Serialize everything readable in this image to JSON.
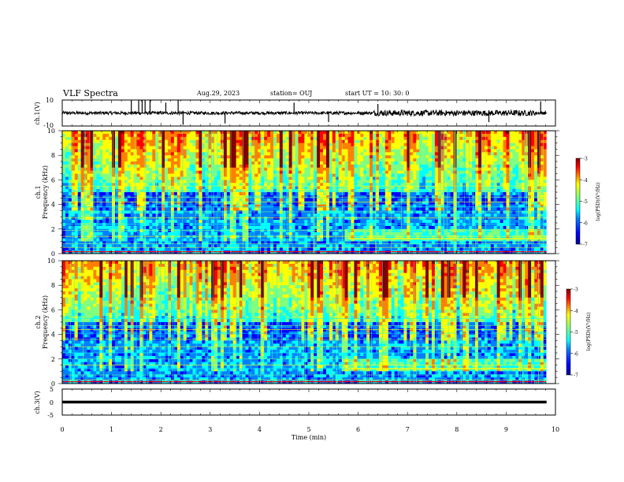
{
  "header": {
    "title": "VLF Spectra",
    "date": "Aug.29, 2023",
    "station": "station= OUJ",
    "start": "start UT =  10: 30: 0"
  },
  "colors": {
    "jet": [
      "#00008f",
      "#0000ff",
      "#0080ff",
      "#00ffff",
      "#80ff80",
      "#ffff00",
      "#ff8000",
      "#ff0000",
      "#800000"
    ]
  },
  "chart_data": [
    {
      "type": "line",
      "panel": "ch1-waveform",
      "ylabel": "ch.1(V)",
      "ylim": [
        -10,
        10
      ],
      "yticks": [
        "10",
        "-10"
      ],
      "xlim": [
        0,
        10
      ],
      "baseline": 0,
      "spikes": [
        {
          "x": 1.4,
          "y": 10
        },
        {
          "x": 1.55,
          "y": 10
        },
        {
          "x": 1.62,
          "y": 10
        },
        {
          "x": 1.68,
          "y": 10
        },
        {
          "x": 1.78,
          "y": 10
        },
        {
          "x": 2.1,
          "y": 8
        },
        {
          "x": 2.35,
          "y": 10
        },
        {
          "x": 2.45,
          "y": -9
        },
        {
          "x": 3.3,
          "y": -8
        },
        {
          "x": 4.7,
          "y": 8
        },
        {
          "x": 5.4,
          "y": -7
        },
        {
          "x": 6.4,
          "y": 7
        },
        {
          "x": 8.65,
          "y": -7
        },
        {
          "x": 9.7,
          "y": 9
        }
      ]
    },
    {
      "type": "heatmap",
      "panel": "ch1-spectrogram",
      "ylabel": "ch.1\nFrequency (kHz)",
      "ylabel_top": "ch.1",
      "ylabel_bottom": "Frequency (kHz)",
      "ylim": [
        0,
        10
      ],
      "yticks": [
        "0",
        "2",
        "4",
        "6",
        "8",
        "10"
      ],
      "xlim": [
        0,
        10
      ],
      "data_xmax": 9.82,
      "colorbar": {
        "label": "log(PSD)(V²/Hz)",
        "range": [
          -7,
          -3
        ],
        "ticks": [
          "-3",
          "-4",
          "-5",
          "-6",
          "-7"
        ]
      }
    },
    {
      "type": "heatmap",
      "panel": "ch2-spectrogram",
      "ylabel": "ch.2\nFrequency (kHz)",
      "ylabel_top": "ch.2",
      "ylabel_bottom": "Frequency (kHz)",
      "ylim": [
        0,
        10
      ],
      "yticks": [
        "0",
        "2",
        "4",
        "6",
        "8",
        "10"
      ],
      "xlim": [
        0,
        10
      ],
      "data_xmax": 9.82,
      "colorbar": {
        "label": "log(PSD)(V²/Hz)",
        "range": [
          -7,
          -3
        ],
        "ticks": [
          "-3",
          "-4",
          "-5",
          "-6",
          "-7"
        ]
      }
    },
    {
      "type": "line",
      "panel": "ch3-waveform",
      "ylabel": "ch.3(V)",
      "ylim": [
        -5,
        5
      ],
      "yticks": [
        "5",
        "0",
        "-5"
      ],
      "xlim": [
        0,
        10
      ],
      "value": 0,
      "xlabel": "Time (min)",
      "xticks": [
        "0",
        "1",
        "2",
        "3",
        "4",
        "5",
        "6",
        "7",
        "8",
        "9",
        "10"
      ]
    }
  ]
}
